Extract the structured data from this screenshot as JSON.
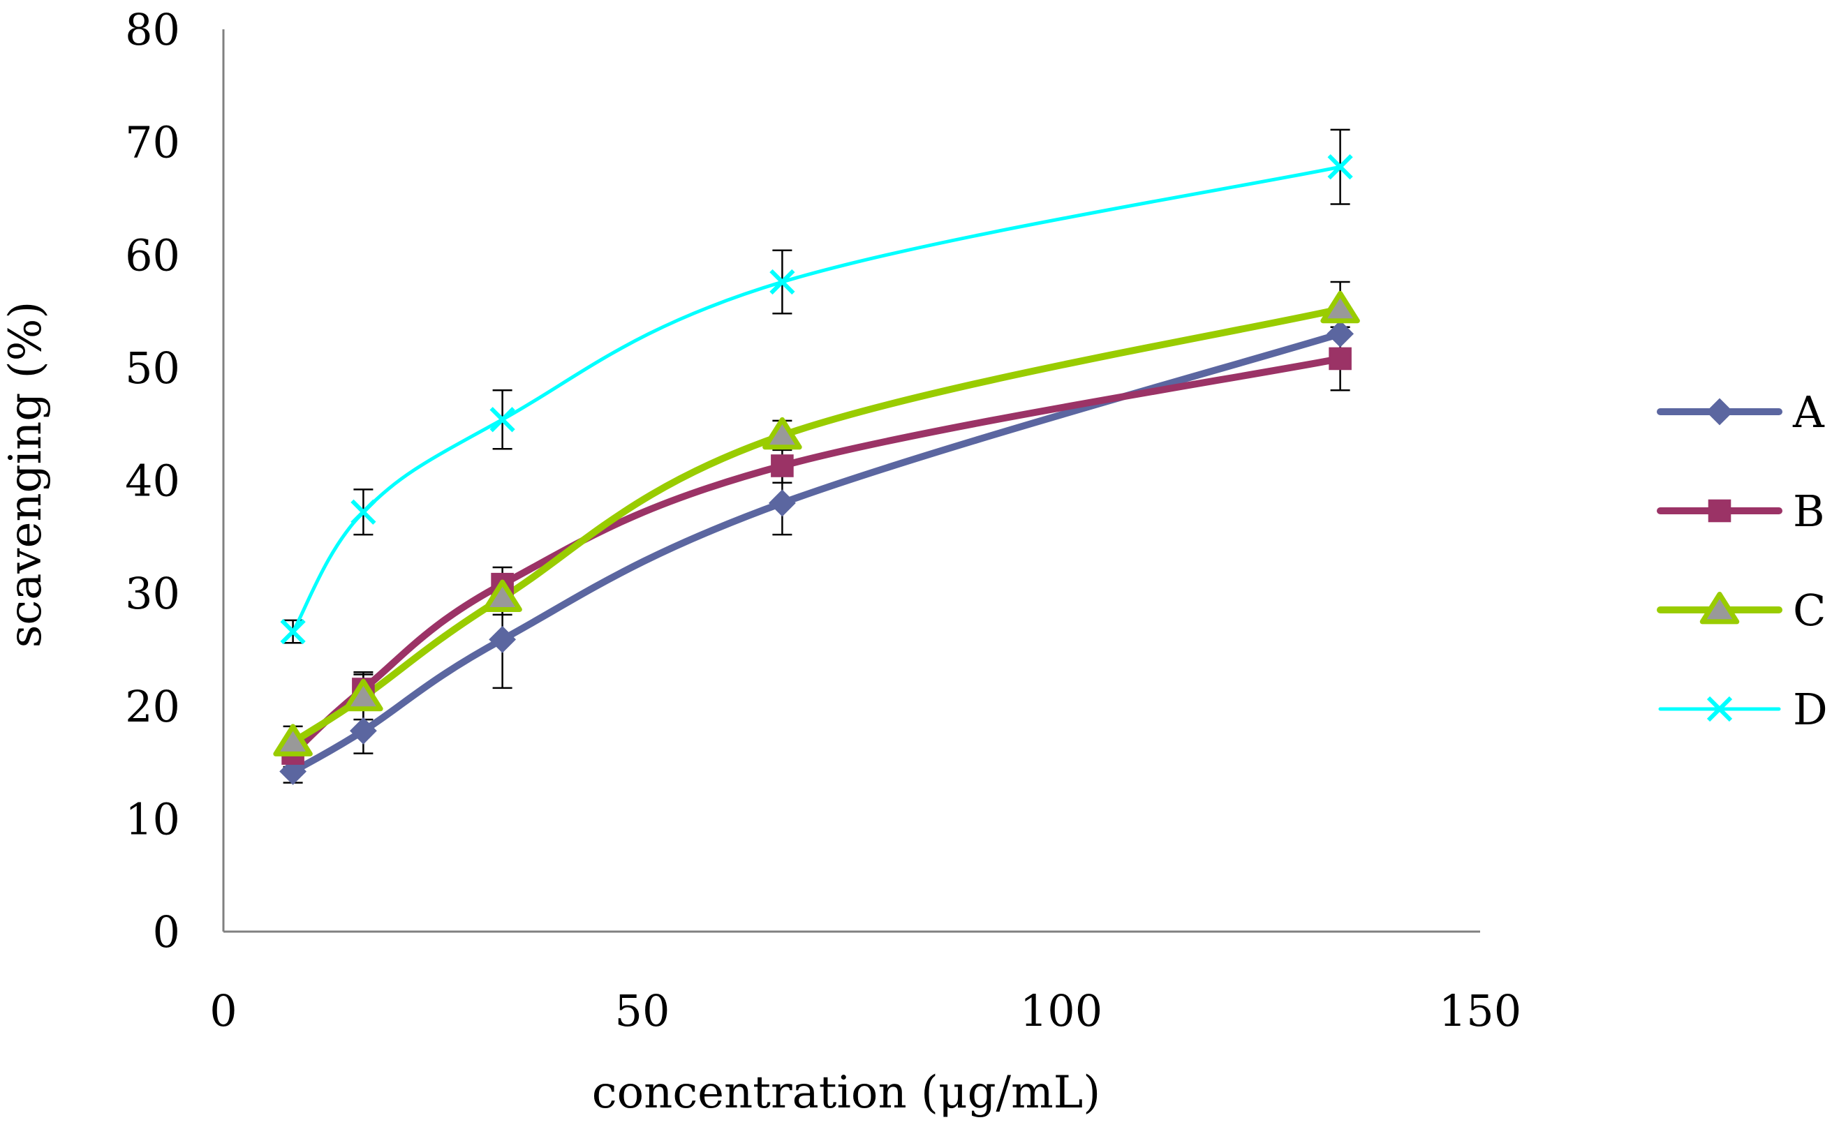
{
  "chart_data": {
    "type": "line",
    "title": "",
    "xlabel": "concentration (μg/mL)",
    "ylabel": "scavenging (%)",
    "xlim": [
      0,
      150
    ],
    "ylim": [
      0,
      80
    ],
    "xticks": [
      0,
      50,
      100,
      150
    ],
    "yticks": [
      0,
      10,
      20,
      30,
      40,
      50,
      60,
      70,
      80
    ],
    "grid": false,
    "legend_position": "right",
    "x": [
      8.3,
      16.7,
      33.3,
      66.7,
      133.3
    ],
    "series": [
      {
        "name": "A",
        "color": "#5B66A0",
        "marker": "diamond",
        "values": [
          14.2,
          17.8,
          25.9,
          38.0,
          53.0
        ],
        "errors": [
          1.0,
          2.0,
          4.3,
          2.8,
          1.5
        ]
      },
      {
        "name": "B",
        "color": "#9B3366",
        "marker": "square",
        "values": [
          15.8,
          21.5,
          30.8,
          41.3,
          50.8
        ],
        "errors": [
          1.2,
          1.5,
          1.5,
          1.5,
          2.8
        ]
      },
      {
        "name": "C",
        "color": "#99CC00",
        "marker": "triangle",
        "values": [
          16.8,
          20.8,
          29.6,
          44.0,
          55.2
        ],
        "errors": [
          1.4,
          2.0,
          1.5,
          1.3,
          2.4
        ]
      },
      {
        "name": "D",
        "color": "#00FFFF",
        "marker": "x",
        "values": [
          26.6,
          37.2,
          45.4,
          57.6,
          67.8
        ],
        "errors": [
          1.0,
          2.0,
          2.6,
          2.8,
          3.3
        ]
      }
    ]
  }
}
